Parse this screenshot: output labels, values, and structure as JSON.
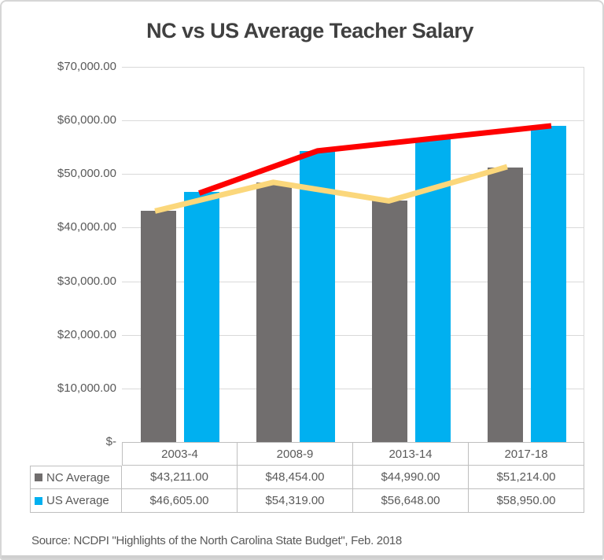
{
  "title": "NC vs US Average Teacher Salary",
  "source_note": "Source: NCDPI \"Highlights of the North Carolina State Budget\", Feb. 2018",
  "y_axis": {
    "ticks": [
      "$70,000.00",
      "$60,000.00",
      "$50,000.00",
      "$40,000.00",
      "$30,000.00",
      "$20,000.00",
      "$10,000.00",
      "$-"
    ]
  },
  "chart_data": {
    "type": "bar",
    "title": "NC vs US Average Teacher Salary",
    "categories": [
      "2003-4",
      "2008-9",
      "2013-14",
      "2017-18"
    ],
    "series": [
      {
        "name": "NC Average",
        "bar_color": "#716e6e",
        "trend_color": "#fbd77b",
        "values": [
          43211,
          48454,
          44990,
          51214
        ],
        "labels": [
          "$43,211.00",
          "$48,454.00",
          "$44,990.00",
          "$51,214.00"
        ]
      },
      {
        "name": "US Average",
        "bar_color": "#00b0f0",
        "trend_color": "#fe0000",
        "values": [
          46605,
          54319,
          56648,
          58950
        ],
        "labels": [
          "$46,605.00",
          "$54,319.00",
          "$56,648.00",
          "$58,950.00"
        ]
      }
    ],
    "xlabel": "",
    "ylabel": "",
    "ylim": [
      0,
      70000
    ],
    "ytick_step": 10000,
    "grid": true,
    "legend_position": "data-table-left",
    "gridline_color": "#d9d9d9",
    "axis_text_color": "#595959",
    "title_color": "#404040",
    "table_border_color": "#bfbfbf"
  }
}
